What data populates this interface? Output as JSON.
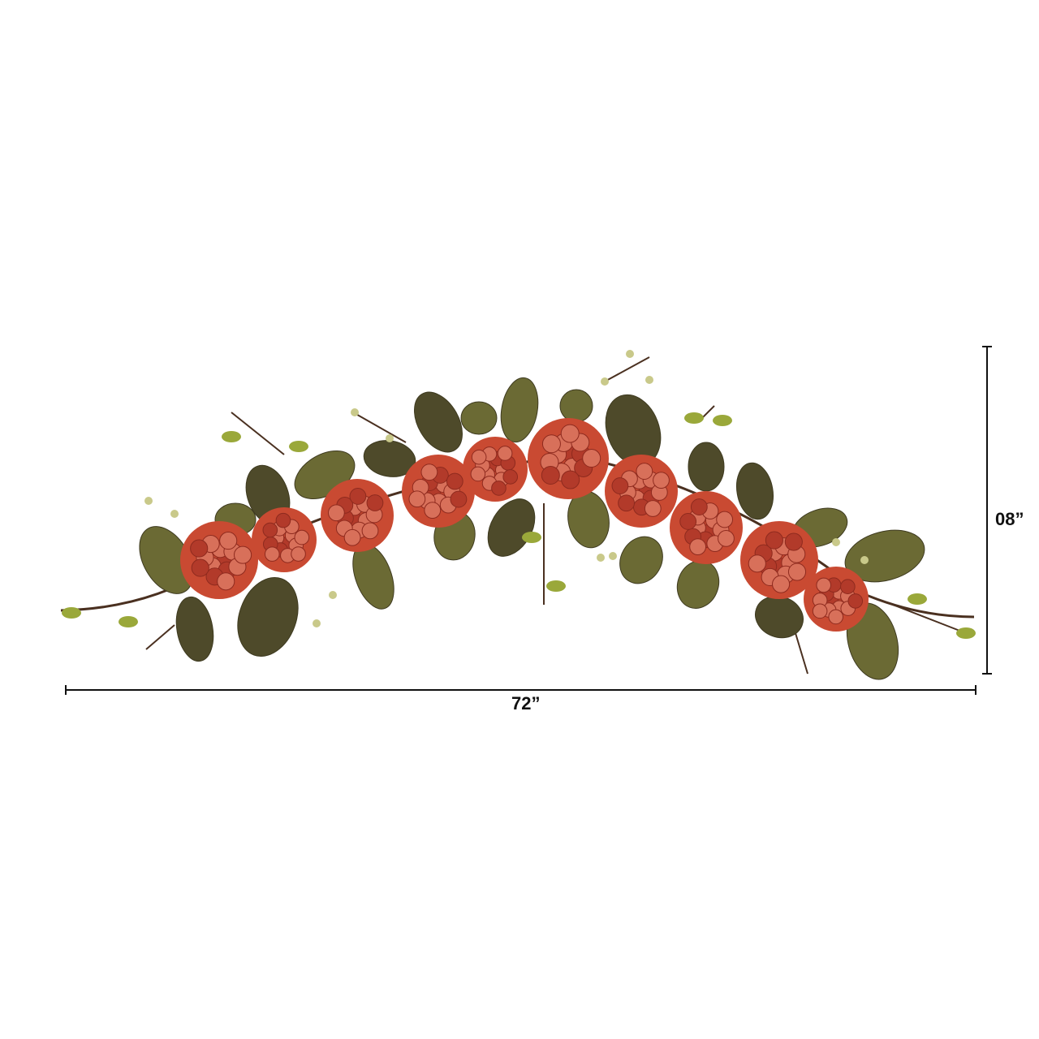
{
  "product": {
    "image_subject": "hydrangea-magnolia-garland",
    "colors": {
      "flower": "#c94a32",
      "flower_light": "#d8705a",
      "leaf": "#6b6a34",
      "leaf_dark": "#4e4a2a",
      "leaf_bright": "#9aa83a",
      "stem": "#4a3020"
    }
  },
  "dimensions": {
    "width_label": "72”",
    "height_label": "08”"
  }
}
